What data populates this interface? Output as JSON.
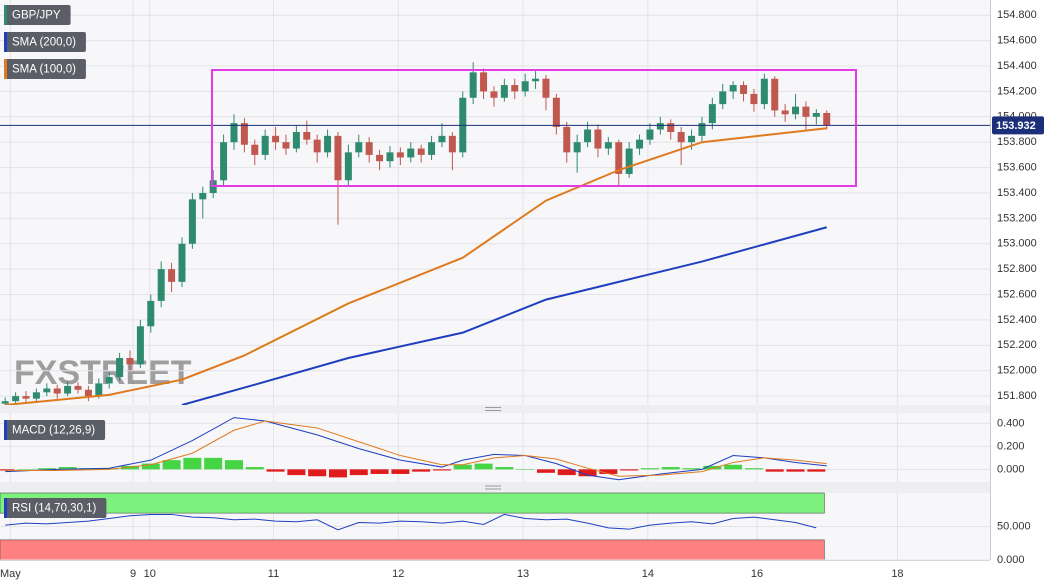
{
  "chart_data": [
    {
      "type": "candlestick",
      "name": "GBP/JPY",
      "watermark": "FXSTREET",
      "up_color": "#2e8b6f",
      "down_color": "#c0584f",
      "grid": true,
      "xlim": [
        -0.5,
        94.7
      ],
      "xticks": [
        {
          "value": 0.5,
          "label": "May"
        },
        {
          "value": 12.3,
          "label": "9"
        },
        {
          "value": 13.9,
          "label": "10"
        },
        {
          "value": 25.8,
          "label": "11"
        },
        {
          "value": 37.8,
          "label": "12"
        },
        {
          "value": 49.8,
          "label": "13"
        },
        {
          "value": 61.8,
          "label": "14"
        },
        {
          "value": 72.3,
          "label": "16"
        },
        {
          "value": 85.8,
          "label": "18"
        }
      ],
      "ylim": [
        151.73,
        154.92
      ],
      "yticks": [
        {
          "value": 151.8,
          "label": "151.800"
        },
        {
          "value": 152.0,
          "label": "152.000"
        },
        {
          "value": 152.2,
          "label": "152.200"
        },
        {
          "value": 152.4,
          "label": "152.400"
        },
        {
          "value": 152.6,
          "label": "152.600"
        },
        {
          "value": 152.8,
          "label": "152.800"
        },
        {
          "value": 153.0,
          "label": "153.000"
        },
        {
          "value": 153.2,
          "label": "153.200"
        },
        {
          "value": 153.4,
          "label": "153.400"
        },
        {
          "value": 153.6,
          "label": "153.600"
        },
        {
          "value": 153.8,
          "label": "153.800"
        },
        {
          "value": 154.0,
          "label": "154.000"
        },
        {
          "value": 154.2,
          "label": "154.200"
        },
        {
          "value": 154.4,
          "label": "154.400"
        },
        {
          "value": 154.6,
          "label": "154.600"
        },
        {
          "value": 154.8,
          "label": "154.800"
        }
      ],
      "last": {
        "value": 153.932,
        "label": "153.932"
      },
      "candles": [
        [
          151.74,
          151.79,
          151.72,
          151.76
        ],
        [
          151.76,
          151.83,
          151.74,
          151.8
        ],
        [
          151.8,
          151.84,
          151.75,
          151.78
        ],
        [
          151.78,
          151.86,
          151.76,
          151.83
        ],
        [
          151.83,
          151.9,
          151.8,
          151.86
        ],
        [
          151.86,
          151.89,
          151.78,
          151.82
        ],
        [
          151.82,
          151.92,
          151.8,
          151.88
        ],
        [
          151.88,
          151.91,
          151.82,
          151.85
        ],
        [
          151.85,
          151.88,
          151.76,
          151.8
        ],
        [
          151.8,
          151.94,
          151.78,
          151.9
        ],
        [
          151.9,
          151.99,
          151.86,
          151.95
        ],
        [
          151.95,
          152.14,
          151.92,
          152.1
        ],
        [
          152.1,
          152.16,
          152.0,
          152.05
        ],
        [
          152.05,
          152.4,
          152.02,
          152.35
        ],
        [
          152.35,
          152.6,
          152.3,
          152.55
        ],
        [
          152.55,
          152.86,
          152.5,
          152.8
        ],
        [
          152.8,
          152.85,
          152.62,
          152.7
        ],
        [
          152.7,
          153.05,
          152.66,
          153.0
        ],
        [
          153.0,
          153.4,
          152.96,
          153.35
        ],
        [
          153.35,
          153.45,
          153.2,
          153.4
        ],
        [
          153.4,
          153.58,
          153.36,
          153.5
        ],
        [
          153.5,
          153.86,
          153.45,
          153.8
        ],
        [
          153.8,
          154.02,
          153.74,
          153.95
        ],
        [
          153.95,
          153.99,
          153.72,
          153.78
        ],
        [
          153.78,
          153.82,
          153.62,
          153.7
        ],
        [
          153.7,
          153.9,
          153.66,
          153.85
        ],
        [
          153.85,
          153.92,
          153.74,
          153.8
        ],
        [
          153.8,
          153.86,
          153.7,
          153.75
        ],
        [
          153.75,
          153.93,
          153.72,
          153.88
        ],
        [
          153.88,
          153.97,
          153.78,
          153.82
        ],
        [
          153.82,
          153.86,
          153.64,
          153.72
        ],
        [
          153.72,
          153.9,
          153.68,
          153.85
        ],
        [
          153.85,
          153.88,
          153.15,
          153.5
        ],
        [
          153.5,
          153.78,
          153.45,
          153.72
        ],
        [
          153.72,
          153.86,
          153.68,
          153.8
        ],
        [
          153.8,
          153.84,
          153.64,
          153.7
        ],
        [
          153.7,
          153.74,
          153.58,
          153.65
        ],
        [
          153.65,
          153.77,
          153.6,
          153.72
        ],
        [
          153.72,
          153.76,
          153.62,
          153.68
        ],
        [
          153.68,
          153.8,
          153.64,
          153.75
        ],
        [
          153.75,
          153.78,
          153.64,
          153.7
        ],
        [
          153.7,
          153.85,
          153.66,
          153.8
        ],
        [
          153.8,
          153.95,
          153.76,
          153.85
        ],
        [
          153.85,
          153.88,
          153.58,
          153.72
        ],
        [
          153.72,
          154.2,
          153.68,
          154.15
        ],
        [
          154.15,
          154.43,
          154.1,
          154.35
        ],
        [
          154.35,
          154.38,
          154.14,
          154.2
        ],
        [
          154.2,
          154.24,
          154.08,
          154.15
        ],
        [
          154.15,
          154.3,
          154.12,
          154.25
        ],
        [
          154.25,
          154.3,
          154.14,
          154.2
        ],
        [
          154.2,
          154.34,
          154.16,
          154.28
        ],
        [
          154.28,
          154.36,
          154.22,
          154.3
        ],
        [
          154.3,
          154.33,
          154.05,
          154.15
        ],
        [
          154.15,
          154.18,
          153.86,
          153.92
        ],
        [
          153.92,
          153.96,
          153.64,
          153.72
        ],
        [
          153.72,
          153.86,
          153.56,
          153.8
        ],
        [
          153.8,
          153.96,
          153.76,
          153.9
        ],
        [
          153.9,
          153.94,
          153.68,
          153.75
        ],
        [
          153.75,
          153.84,
          153.7,
          153.8
        ],
        [
          153.8,
          153.82,
          153.46,
          153.55
        ],
        [
          153.55,
          153.8,
          153.52,
          153.75
        ],
        [
          153.75,
          153.86,
          153.7,
          153.82
        ],
        [
          153.82,
          153.95,
          153.78,
          153.9
        ],
        [
          153.9,
          154.0,
          153.86,
          153.95
        ],
        [
          153.95,
          153.98,
          153.82,
          153.88
        ],
        [
          153.88,
          153.92,
          153.62,
          153.8
        ],
        [
          153.8,
          153.9,
          153.74,
          153.85
        ],
        [
          153.85,
          154.0,
          153.8,
          153.95
        ],
        [
          153.95,
          154.15,
          153.9,
          154.1
        ],
        [
          154.1,
          154.26,
          154.06,
          154.2
        ],
        [
          154.2,
          154.28,
          154.14,
          154.25
        ],
        [
          154.25,
          154.28,
          154.12,
          154.18
        ],
        [
          154.18,
          154.22,
          154.04,
          154.1
        ],
        [
          154.1,
          154.34,
          154.06,
          154.3
        ],
        [
          154.3,
          154.32,
          154.0,
          154.05
        ],
        [
          154.05,
          154.1,
          153.96,
          154.02
        ],
        [
          154.02,
          154.18,
          153.98,
          154.08
        ],
        [
          154.08,
          154.12,
          153.9,
          154.0
        ],
        [
          154.0,
          154.06,
          153.94,
          154.03
        ],
        [
          154.03,
          154.05,
          153.9,
          153.932
        ]
      ],
      "series": [
        {
          "name": "SMA (200,0)",
          "color": "#1f3fbf",
          "x": [
            17,
            24,
            33,
            44,
            52,
            59,
            67,
            79
          ],
          "values": [
            151.73,
            151.89,
            152.1,
            152.3,
            152.56,
            152.7,
            152.86,
            153.13
          ]
        },
        {
          "name": "SMA (100,0)",
          "color": "#e07a1f",
          "x": [
            0,
            10,
            17,
            23,
            33,
            44,
            52,
            59,
            67,
            79
          ],
          "values": [
            151.73,
            151.81,
            151.93,
            152.12,
            152.53,
            152.89,
            153.34,
            153.58,
            153.8,
            153.91
          ]
        }
      ]
    },
    {
      "type": "macd",
      "name": "MACD (12,26,9)",
      "ylim": [
        -0.11,
        0.49
      ],
      "yticks": [
        {
          "value": 0,
          "label": "0.000"
        },
        {
          "value": 0.2,
          "label": "0.200"
        },
        {
          "value": 0.4,
          "label": "0.400"
        }
      ],
      "series": [
        {
          "color": "#1f3fbf",
          "x": [
            0,
            5,
            10,
            14,
            18,
            22,
            25,
            30,
            34,
            38,
            42,
            44,
            47,
            50,
            53,
            56,
            59,
            63,
            67,
            70,
            73,
            76,
            79
          ],
          "values": [
            -0.02,
            0.0,
            0.01,
            0.08,
            0.25,
            0.45,
            0.42,
            0.3,
            0.18,
            0.08,
            0.02,
            0.08,
            0.13,
            0.12,
            0.05,
            -0.05,
            -0.09,
            -0.04,
            0.0,
            0.12,
            0.1,
            0.06,
            0.03
          ]
        },
        {
          "color": "#e07a1f",
          "x": [
            0,
            5,
            10,
            14,
            18,
            22,
            25,
            30,
            34,
            38,
            42,
            44,
            47,
            50,
            53,
            56,
            59,
            63,
            67,
            70,
            73,
            76,
            79
          ],
          "values": [
            -0.01,
            -0.01,
            0.0,
            0.04,
            0.14,
            0.34,
            0.42,
            0.36,
            0.24,
            0.12,
            0.04,
            0.04,
            0.1,
            0.12,
            0.09,
            0.01,
            -0.06,
            -0.05,
            -0.02,
            0.06,
            0.1,
            0.08,
            0.05
          ]
        }
      ],
      "histogram": {
        "up_color": "#44d444",
        "down_color": "#e01b1b",
        "x": [
          0,
          2,
          4,
          6,
          8,
          10,
          12,
          14,
          16,
          18,
          20,
          22,
          24,
          26,
          28,
          30,
          32,
          34,
          36,
          38,
          40,
          42,
          44,
          46,
          48,
          50,
          52,
          54,
          56,
          58,
          60,
          62,
          64,
          66,
          68,
          70,
          72,
          74,
          76,
          78
        ],
        "values": [
          -0.01,
          0.0,
          0.01,
          0.02,
          0.01,
          0.01,
          0.03,
          0.05,
          0.08,
          0.1,
          0.1,
          0.08,
          0.02,
          -0.02,
          -0.05,
          -0.06,
          -0.07,
          -0.05,
          -0.04,
          -0.04,
          -0.02,
          -0.01,
          0.04,
          0.05,
          0.02,
          0.0,
          -0.03,
          -0.05,
          -0.06,
          -0.04,
          -0.01,
          0.01,
          0.02,
          0.01,
          0.03,
          0.04,
          0.01,
          -0.02,
          -0.02,
          -0.02
        ]
      }
    },
    {
      "type": "rsi",
      "name": "RSI (14,70,30,1)",
      "ylim": [
        0,
        100
      ],
      "yticks": [
        {
          "value": 0,
          "label": "0.000"
        },
        {
          "value": 50,
          "label": "50.000"
        }
      ],
      "bands": [
        {
          "from": 70,
          "to": 100,
          "color": "#7ef07e"
        },
        {
          "from": 0,
          "to": 30,
          "color": "#ff8080"
        }
      ],
      "series": [
        {
          "color": "#1f3fbf",
          "x": [
            0,
            2,
            4,
            6,
            8,
            10,
            12,
            14,
            16,
            18,
            20,
            22,
            24,
            26,
            28,
            30,
            32,
            34,
            36,
            38,
            40,
            42,
            44,
            46,
            48,
            50,
            52,
            54,
            56,
            58,
            60,
            62,
            64,
            66,
            68,
            70,
            72,
            74,
            76,
            78
          ],
          "values": [
            52,
            55,
            54,
            56,
            58,
            62,
            66,
            68,
            68,
            64,
            63,
            60,
            61,
            58,
            57,
            60,
            45,
            56,
            55,
            58,
            57,
            55,
            58,
            53,
            68,
            62,
            60,
            61,
            55,
            48,
            46,
            52,
            55,
            57,
            54,
            62,
            64,
            60,
            56,
            48
          ]
        }
      ]
    }
  ]
}
